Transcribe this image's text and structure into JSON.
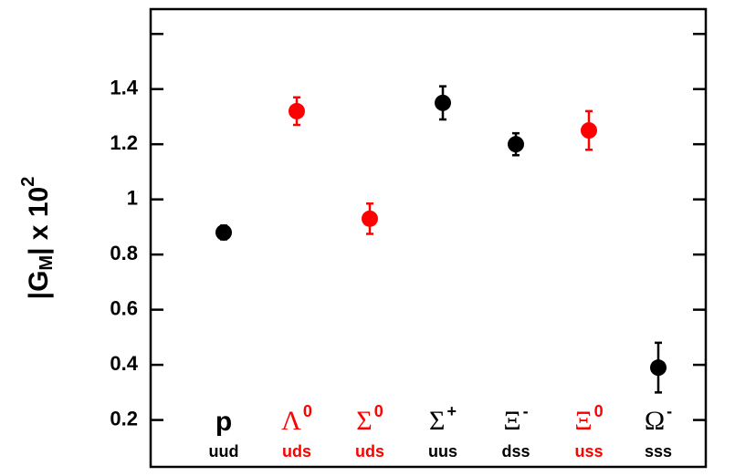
{
  "chart_data": {
    "type": "errorbar",
    "ylabel": {
      "pre": "|G",
      "sub": "M",
      "mid": "| x 10",
      "sup": "2"
    },
    "categories": [
      "p",
      "Λ",
      "Σ",
      "Σ",
      "Ξ",
      "Ξ",
      "Ω"
    ],
    "charges": [
      null,
      "0",
      "0",
      "+",
      "-",
      "0",
      "-"
    ],
    "quarks": [
      "uud",
      "uds",
      "uds",
      "uus",
      "dss",
      "uss",
      "sss"
    ],
    "values": [
      0.88,
      1.32,
      0.93,
      1.35,
      1.2,
      1.25,
      0.39
    ],
    "errors": [
      0.025,
      0.05,
      0.055,
      0.06,
      0.04,
      0.07,
      0.09
    ],
    "colors": [
      "#000000",
      "#ff0000",
      "#ff0000",
      "#000000",
      "#000000",
      "#ff0000",
      "#000000"
    ],
    "ylim": [
      0.03,
      1.69
    ],
    "yticks": [
      0.2,
      0.4,
      0.6,
      0.8,
      1,
      1.2,
      1.4
    ],
    "minor_yticks": [
      1.6
    ]
  }
}
